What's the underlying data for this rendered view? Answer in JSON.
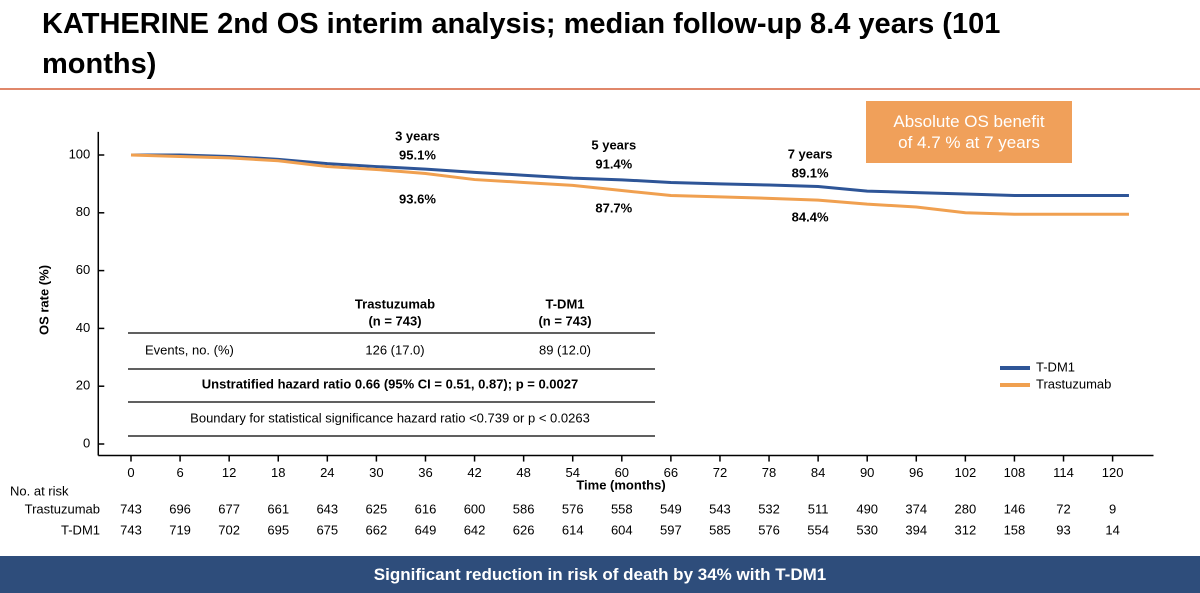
{
  "header": {
    "title": "KATHERINE 2nd OS interim analysis; median follow-up 8.4 years (101 months)"
  },
  "callout": "Absolute OS benefit of 4.7 % at 7 years",
  "chart_data": {
    "type": "line",
    "y_label": "OS rate (%)",
    "x_label": "Time (months)",
    "x": [
      0,
      6,
      12,
      18,
      24,
      30,
      36,
      42,
      48,
      54,
      60,
      66,
      72,
      78,
      84,
      90,
      96,
      102,
      108,
      114,
      122
    ],
    "series": [
      {
        "name": "T-DM1",
        "color": "#2e5597",
        "values": [
          100,
          100,
          99.5,
          98.5,
          97,
          96,
          95.1,
          94,
          93,
          92,
          91.4,
          90.5,
          90,
          89.6,
          89.1,
          87.5,
          87,
          86.5,
          86,
          86,
          86
        ]
      },
      {
        "name": "Trastuzumab",
        "color": "#f0a050",
        "values": [
          100,
          99.5,
          99,
          98,
          96,
          95,
          93.6,
          91.5,
          90.5,
          89.5,
          87.7,
          86,
          85.5,
          85,
          84.4,
          83,
          82,
          80,
          79.5,
          79.5,
          79.5
        ]
      }
    ],
    "annotations": [
      {
        "x": 36,
        "label": "3 years",
        "tdm1": "95.1%",
        "trastuzumab": "93.6%"
      },
      {
        "x": 60,
        "label": "5 years",
        "tdm1": "91.4%",
        "trastuzumab": "87.7%"
      },
      {
        "x": 84,
        "label": "7 years",
        "tdm1": "89.1%",
        "trastuzumab": "84.4%"
      }
    ],
    "xlim": [
      -4,
      125
    ],
    "xticks": [
      0,
      6,
      12,
      18,
      24,
      30,
      36,
      42,
      48,
      54,
      60,
      66,
      72,
      78,
      84,
      90,
      96,
      102,
      108,
      114,
      120
    ],
    "ylim": [
      -4,
      108
    ],
    "yticks": [
      0,
      20,
      40,
      60,
      80,
      100
    ],
    "legend": "right"
  },
  "inset_table": {
    "headers": [
      [
        "Trastuzumab",
        "(n = 743)"
      ],
      [
        "T-DM1",
        "(n = 743)"
      ]
    ],
    "events": [
      "Events, no. (%)",
      "126 (17.0)",
      "89 (12.0)"
    ],
    "hazard_ratio": "Unstratified hazard ratio 0.66 (95% CI = 0.51, 0.87); p = 0.0027",
    "boundary": "Boundary for statistical significance hazard ratio <0.739 or p < 0.0263"
  },
  "risk_table": {
    "title": "No. at risk",
    "rows": [
      {
        "name": "Trastuzumab",
        "values": [
          743,
          696,
          677,
          661,
          643,
          625,
          616,
          600,
          586,
          576,
          558,
          549,
          543,
          532,
          511,
          490,
          374,
          280,
          146,
          72,
          9
        ]
      },
      {
        "name": "T-DM1",
        "values": [
          743,
          719,
          702,
          695,
          675,
          662,
          649,
          642,
          626,
          614,
          604,
          597,
          585,
          576,
          554,
          530,
          394,
          312,
          158,
          93,
          14
        ]
      }
    ]
  },
  "footer": "Significant reduction in risk of death by 34% with T-DM1"
}
